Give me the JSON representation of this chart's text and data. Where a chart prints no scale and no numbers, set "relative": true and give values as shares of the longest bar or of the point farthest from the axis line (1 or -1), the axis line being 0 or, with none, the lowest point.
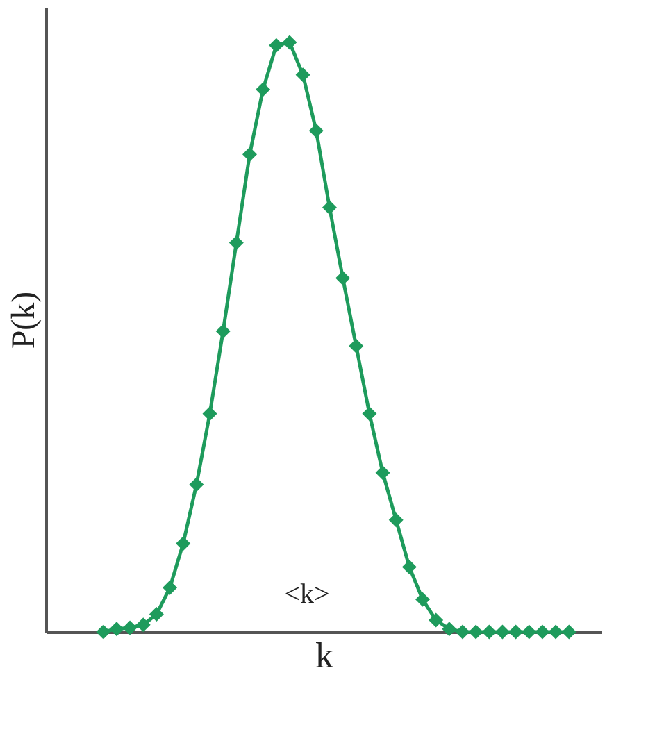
{
  "chart_data": {
    "type": "line",
    "relative": true,
    "xlabel": "k",
    "ylabel": "P(k)",
    "categories": [
      null,
      null,
      null,
      null,
      null,
      null,
      null,
      null,
      null,
      null,
      null,
      null,
      null,
      null,
      null,
      null,
      null,
      null,
      null,
      null,
      null,
      null,
      null,
      null,
      null,
      null,
      null,
      null,
      null,
      null,
      null,
      null,
      null,
      null,
      null,
      null
    ],
    "series": [
      {
        "color": "#1e9b5c",
        "values": [
          0,
          0.005,
          0.007,
          0.012,
          0.03,
          0.075,
          0.15,
          0.25,
          0.37,
          0.51,
          0.66,
          0.81,
          0.92,
          0.995,
          1,
          0.945,
          0.85,
          0.72,
          0.6,
          0.485,
          0.37,
          0.27,
          0.19,
          0.11,
          0.055,
          0.02,
          0.005,
          0,
          0,
          0,
          0,
          0,
          0,
          0,
          0,
          0
        ]
      }
    ],
    "marker": "diamond",
    "line_style": "solid",
    "grid": false,
    "tick_labels": false,
    "annotations": [
      "<k>"
    ]
  }
}
